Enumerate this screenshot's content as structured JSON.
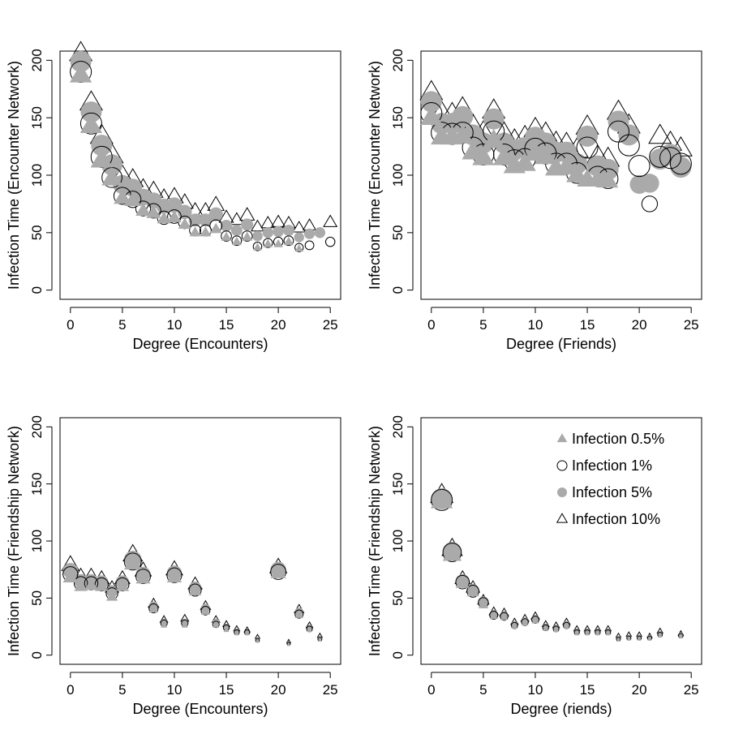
{
  "chart_data": [
    {
      "type": "scatter",
      "title": "",
      "xlabel": "Degree (Encounters)",
      "ylabel": "Infection Time (Encounter Network)",
      "xlim": [
        -1,
        26
      ],
      "ylim": [
        -8,
        208
      ],
      "xticks": [
        0,
        5,
        10,
        15,
        20,
        25
      ],
      "yticks": [
        0,
        50,
        100,
        150,
        200
      ],
      "series": [
        {
          "name": "Infection 0.5%",
          "marker": "filled-triangle",
          "color": "#aaaaaa",
          "x": [
            1,
            2,
            3,
            4,
            5,
            6,
            7,
            8,
            9,
            10,
            11,
            12,
            13,
            14,
            15,
            16,
            17,
            18,
            19,
            20,
            21,
            22
          ],
          "y": [
            187,
            143,
            113,
            97,
            80,
            78,
            69,
            67,
            62,
            63,
            57,
            50,
            50,
            53,
            46,
            42,
            46,
            37,
            40,
            40,
            42,
            36
          ]
        },
        {
          "name": "Infection 1%",
          "marker": "open-circle",
          "color": "#000000",
          "x": [
            1,
            2,
            3,
            4,
            5,
            6,
            7,
            8,
            9,
            10,
            11,
            12,
            13,
            14,
            15,
            16,
            17,
            18,
            19,
            20,
            21,
            22,
            23,
            24,
            25
          ],
          "y": [
            190,
            145,
            116,
            98,
            82,
            79,
            71,
            69,
            63,
            64,
            59,
            52,
            52,
            56,
            47,
            43,
            47,
            38,
            41,
            42,
            43,
            37,
            39,
            null,
            42
          ]
        },
        {
          "name": "Infection 5%",
          "marker": "filled-circle",
          "color": "#aaaaaa",
          "x": [
            1,
            2,
            3,
            4,
            5,
            6,
            7,
            8,
            9,
            10,
            11,
            12,
            13,
            14,
            15,
            16,
            17,
            18,
            19,
            20,
            21,
            22,
            23,
            24
          ],
          "y": [
            199,
            155,
            126,
            109,
            92,
            89,
            81,
            78,
            73,
            74,
            68,
            61,
            61,
            66,
            56,
            52,
            57,
            47,
            50,
            51,
            52,
            46,
            49,
            50
          ]
        },
        {
          "name": "Infection 10%",
          "marker": "open-triangle",
          "color": "#000000",
          "x": [
            1,
            2,
            3,
            4,
            5,
            6,
            7,
            8,
            9,
            10,
            11,
            12,
            13,
            14,
            15,
            16,
            17,
            18,
            19,
            20,
            21,
            22,
            23,
            24,
            25
          ],
          "y": [
            206,
            163,
            134,
            117,
            99,
            96,
            88,
            86,
            80,
            81,
            76,
            69,
            69,
            74,
            63,
            61,
            65,
            55,
            58,
            59,
            58,
            54,
            56,
            null,
            59
          ]
        }
      ]
    },
    {
      "type": "scatter",
      "title": "",
      "xlabel": "Degree (Friends)",
      "ylabel": "Infection Time (Encounter Network)",
      "xlim": [
        -1,
        26
      ],
      "ylim": [
        -8,
        208
      ],
      "xticks": [
        0,
        5,
        10,
        15,
        20,
        25
      ],
      "yticks": [
        0,
        50,
        100,
        150,
        200
      ],
      "series": [
        {
          "name": "Infection 0.5%",
          "marker": "filled-triangle",
          "color": "#aaaaaa",
          "x": [
            0,
            1,
            2,
            3,
            4,
            5,
            6,
            7,
            8,
            9,
            10,
            11,
            12,
            13,
            14,
            15,
            16,
            17
          ],
          "y": [
            150,
            133,
            133,
            134,
            120,
            115,
            130,
            115,
            108,
            110,
            119,
            116,
            106,
            107,
            100,
            96,
            96,
            95
          ]
        },
        {
          "name": "Infection 1%",
          "marker": "open-circle",
          "color": "#000000",
          "x": [
            0,
            1,
            2,
            3,
            4,
            5,
            6,
            7,
            8,
            9,
            10,
            11,
            12,
            13,
            14,
            15,
            16,
            17,
            18,
            19,
            20,
            21,
            22,
            23,
            24
          ],
          "y": [
            154,
            137,
            136,
            137,
            124,
            118,
            138,
            118,
            113,
            114,
            123,
            119,
            110,
            110,
            102,
            124,
            99,
            97,
            138,
            126,
            108,
            75,
            116,
            115,
            110
          ]
        },
        {
          "name": "Infection 5%",
          "marker": "filled-circle",
          "color": "#aaaaaa",
          "x": [
            0,
            1,
            2,
            3,
            4,
            5,
            6,
            7,
            8,
            9,
            10,
            11,
            12,
            13,
            14,
            15,
            16,
            17,
            18,
            19,
            20,
            21,
            22,
            23,
            24
          ],
          "y": [
            164,
            145,
            145,
            151,
            135,
            128,
            149,
            128,
            122,
            124,
            133,
            128,
            120,
            120,
            110,
            134,
            108,
            105,
            147,
            135,
            92,
            93,
            114,
            118,
            107
          ]
        },
        {
          "name": "Infection 10%",
          "marker": "open-triangle",
          "color": "#000000",
          "x": [
            0,
            1,
            2,
            3,
            4,
            5,
            6,
            7,
            8,
            9,
            10,
            11,
            12,
            13,
            14,
            15,
            16,
            17,
            18,
            19,
            20,
            21,
            22,
            23,
            24
          ],
          "y": [
            172,
            154,
            153,
            158,
            143,
            137,
            156,
            136,
            130,
            133,
            140,
            136,
            128,
            127,
            122,
            142,
            116,
            114,
            155,
            143,
            null,
            null,
            134,
            128,
            123
          ]
        }
      ]
    },
    {
      "type": "scatter",
      "title": "",
      "xlabel": "Degree (Encounters)",
      "ylabel": "Infection Time (Friendship Network)",
      "xlim": [
        -1,
        26
      ],
      "ylim": [
        -8,
        208
      ],
      "xticks": [
        0,
        5,
        10,
        15,
        20,
        25
      ],
      "yticks": [
        0,
        50,
        100,
        150,
        200
      ],
      "series": [
        {
          "name": "Infection 0.5%",
          "marker": "filled-triangle",
          "color": "#aaaaaa",
          "x": [
            0,
            1,
            2,
            3,
            4,
            5,
            6,
            7,
            8,
            9,
            10,
            11,
            12,
            13,
            14,
            15,
            16,
            17,
            18,
            20,
            21,
            22,
            23,
            24
          ],
          "y": [
            68,
            60,
            61,
            60,
            51,
            60,
            80,
            67,
            40,
            26,
            68,
            26,
            56,
            38,
            26,
            22,
            19,
            19,
            12,
            72,
            9,
            35,
            22,
            13
          ]
        },
        {
          "name": "Infection 1%",
          "marker": "open-circle",
          "color": "#000000",
          "x": [
            0,
            1,
            2,
            3,
            4,
            5,
            6,
            7,
            8,
            9,
            10,
            11,
            12,
            13,
            14,
            15,
            16,
            17,
            18,
            20,
            21,
            22,
            23,
            24
          ],
          "y": [
            71,
            63,
            63,
            62,
            54,
            62,
            82,
            69,
            41,
            28,
            70,
            28,
            57,
            39,
            27,
            24,
            20,
            20,
            13,
            73,
            10,
            36,
            23,
            14
          ]
        },
        {
          "name": "Infection 5%",
          "marker": "filled-circle",
          "color": "#aaaaaa",
          "x": [
            0,
            1,
            2,
            3,
            4,
            5,
            6,
            7,
            8,
            9,
            10,
            11,
            12,
            13,
            14,
            15,
            16,
            17,
            18,
            20,
            21,
            22,
            23,
            24
          ],
          "y": [
            74,
            65,
            65,
            64,
            56,
            64,
            84,
            71,
            43,
            29,
            72,
            29,
            59,
            41,
            29,
            25,
            21,
            20,
            14,
            75,
            11,
            38,
            24,
            15
          ]
        },
        {
          "name": "Infection 10%",
          "marker": "open-triangle",
          "color": "#000000",
          "x": [
            0,
            1,
            2,
            3,
            4,
            5,
            6,
            7,
            8,
            9,
            10,
            11,
            12,
            13,
            14,
            15,
            16,
            17,
            18,
            20,
            21,
            22,
            23,
            24
          ],
          "y": [
            79,
            69,
            69,
            67,
            59,
            67,
            88,
            74,
            45,
            31,
            75,
            32,
            62,
            43,
            31,
            27,
            23,
            22,
            16,
            77,
            12,
            40,
            26,
            17
          ]
        }
      ]
    },
    {
      "type": "scatter",
      "title": "",
      "xlabel": "Degree (riends)",
      "ylabel": "Infection Time (Friendship Network)",
      "xlim": [
        -1,
        26
      ],
      "ylim": [
        -8,
        208
      ],
      "xticks": [
        0,
        5,
        10,
        15,
        20,
        25
      ],
      "yticks": [
        0,
        50,
        100,
        150,
        200
      ],
      "series": [
        {
          "name": "Infection 0.5%",
          "marker": "filled-triangle",
          "color": "#aaaaaa",
          "x": [
            1,
            2,
            3,
            4,
            5,
            6,
            7,
            8,
            9,
            10,
            11,
            12,
            13,
            14,
            15,
            16,
            17,
            18,
            19,
            20,
            21,
            22,
            24
          ],
          "y": [
            135,
            88,
            63,
            55,
            44,
            34,
            33,
            25,
            28,
            30,
            23,
            22,
            25,
            19,
            19,
            19,
            19,
            13,
            14,
            14,
            14,
            17,
            16
          ]
        },
        {
          "name": "Infection 1%",
          "marker": "open-circle",
          "color": "#000000",
          "x": [
            1,
            2,
            3,
            4,
            5,
            6,
            7,
            8,
            9,
            10,
            11,
            12,
            13,
            14,
            15,
            16,
            17,
            18,
            19,
            20,
            21,
            22,
            24
          ],
          "y": [
            136,
            90,
            64,
            56,
            46,
            35,
            34,
            26,
            29,
            31,
            24,
            23,
            26,
            20,
            20,
            20,
            20,
            14,
            15,
            15,
            15,
            18,
            17
          ]
        },
        {
          "name": "Infection 5%",
          "marker": "filled-circle",
          "color": "#aaaaaa",
          "x": [
            1,
            2,
            3,
            4,
            5,
            6,
            7,
            8,
            9,
            10,
            11,
            12,
            13,
            14,
            15,
            16,
            17,
            18,
            19,
            20,
            21,
            22,
            24
          ],
          "y": [
            137,
            91,
            65,
            57,
            47,
            36,
            35,
            27,
            30,
            32,
            25,
            24,
            27,
            21,
            21,
            21,
            21,
            15,
            16,
            16,
            16,
            19,
            18
          ]
        },
        {
          "name": "Infection 10%",
          "marker": "open-triangle",
          "color": "#000000",
          "x": [
            1,
            2,
            3,
            4,
            5,
            6,
            7,
            8,
            9,
            10,
            11,
            12,
            13,
            14,
            15,
            16,
            17,
            18,
            19,
            20,
            21,
            22,
            24
          ],
          "y": [
            140,
            93,
            67,
            59,
            48,
            38,
            37,
            29,
            32,
            34,
            27,
            26,
            29,
            23,
            23,
            23,
            23,
            17,
            18,
            18,
            17,
            21,
            19
          ]
        }
      ]
    }
  ],
  "legend": {
    "placement": "top-right of bottom-right panel",
    "entries": [
      {
        "label": "Infection 0.5%",
        "marker": "filled-triangle"
      },
      {
        "label": "Infection 1%",
        "marker": "open-circle"
      },
      {
        "label": "Infection 5%",
        "marker": "filled-circle"
      },
      {
        "label": "Infection 10%",
        "marker": "open-triangle"
      }
    ]
  },
  "colors": {
    "gray": "#aaaaaa",
    "black": "#000000",
    "frame": "#000000"
  }
}
